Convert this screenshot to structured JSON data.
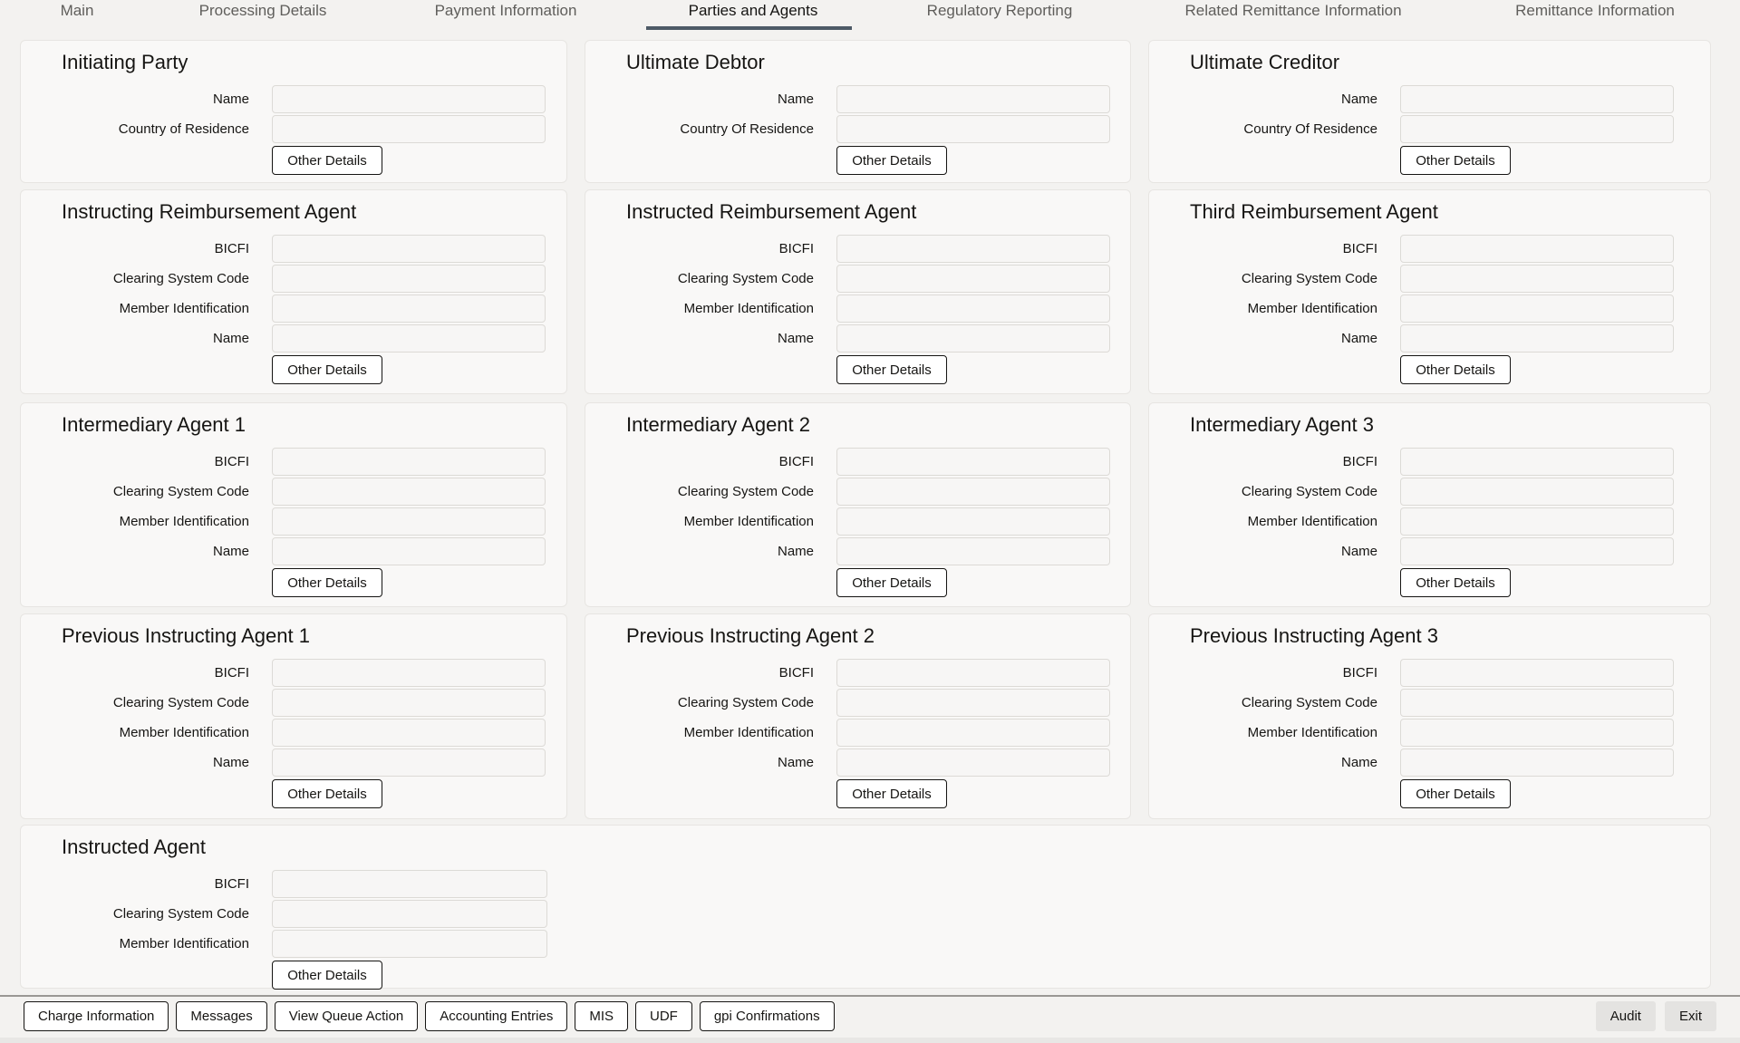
{
  "tabs": [
    {
      "label": "Main"
    },
    {
      "label": "Processing Details"
    },
    {
      "label": "Payment Information"
    },
    {
      "label": "Parties and Agents",
      "active": true
    },
    {
      "label": "Regulatory Reporting"
    },
    {
      "label": "Related Remittance Information"
    },
    {
      "label": "Remittance Information"
    }
  ],
  "panels": [
    {
      "title": "Initiating Party",
      "fields": [
        {
          "label": "Name",
          "value": ""
        },
        {
          "label": "Country of Residence",
          "value": ""
        }
      ],
      "button": "Other Details"
    },
    {
      "title": "Ultimate Debtor",
      "fields": [
        {
          "label": "Name",
          "value": ""
        },
        {
          "label": "Country Of Residence",
          "value": ""
        }
      ],
      "button": "Other Details"
    },
    {
      "title": "Ultimate Creditor",
      "fields": [
        {
          "label": "Name",
          "value": ""
        },
        {
          "label": "Country Of Residence",
          "value": ""
        }
      ],
      "button": "Other Details"
    },
    {
      "title": "Instructing Reimbursement Agent",
      "fields": [
        {
          "label": "BICFI",
          "value": ""
        },
        {
          "label": "Clearing System Code",
          "value": ""
        },
        {
          "label": "Member Identification",
          "value": ""
        },
        {
          "label": "Name",
          "value": ""
        }
      ],
      "button": "Other Details"
    },
    {
      "title": "Instructed Reimbursement Agent",
      "fields": [
        {
          "label": "BICFI",
          "value": ""
        },
        {
          "label": "Clearing System Code",
          "value": ""
        },
        {
          "label": "Member Identification",
          "value": ""
        },
        {
          "label": "Name",
          "value": ""
        }
      ],
      "button": "Other Details"
    },
    {
      "title": "Third Reimbursement Agent",
      "fields": [
        {
          "label": "BICFI",
          "value": ""
        },
        {
          "label": "Clearing System Code",
          "value": ""
        },
        {
          "label": "Member Identification",
          "value": ""
        },
        {
          "label": "Name",
          "value": ""
        }
      ],
      "button": "Other Details"
    },
    {
      "title": "Intermediary Agent 1",
      "fields": [
        {
          "label": "BICFI",
          "value": ""
        },
        {
          "label": "Clearing System Code",
          "value": ""
        },
        {
          "label": "Member Identification",
          "value": ""
        },
        {
          "label": "Name",
          "value": ""
        }
      ],
      "button": "Other Details"
    },
    {
      "title": "Intermediary Agent 2",
      "fields": [
        {
          "label": "BICFI",
          "value": ""
        },
        {
          "label": "Clearing System Code",
          "value": ""
        },
        {
          "label": "Member Identification",
          "value": ""
        },
        {
          "label": "Name",
          "value": ""
        }
      ],
      "button": "Other Details"
    },
    {
      "title": "Intermediary Agent 3",
      "fields": [
        {
          "label": "BICFI",
          "value": ""
        },
        {
          "label": "Clearing System Code",
          "value": ""
        },
        {
          "label": "Member Identification",
          "value": ""
        },
        {
          "label": "Name",
          "value": ""
        }
      ],
      "button": "Other Details"
    },
    {
      "title": "Previous Instructing Agent 1",
      "fields": [
        {
          "label": "BICFI",
          "value": ""
        },
        {
          "label": "Clearing System Code",
          "value": ""
        },
        {
          "label": "Member Identification",
          "value": ""
        },
        {
          "label": "Name",
          "value": ""
        }
      ],
      "button": "Other Details"
    },
    {
      "title": "Previous Instructing Agent 2",
      "fields": [
        {
          "label": "BICFI",
          "value": ""
        },
        {
          "label": "Clearing System Code",
          "value": ""
        },
        {
          "label": "Member Identification",
          "value": ""
        },
        {
          "label": "Name",
          "value": ""
        }
      ],
      "button": "Other Details"
    },
    {
      "title": "Previous Instructing Agent 3",
      "fields": [
        {
          "label": "BICFI",
          "value": ""
        },
        {
          "label": "Clearing System Code",
          "value": ""
        },
        {
          "label": "Member Identification",
          "value": ""
        },
        {
          "label": "Name",
          "value": ""
        }
      ],
      "button": "Other Details"
    },
    {
      "title": "Instructed Agent",
      "fields": [
        {
          "label": "BICFI",
          "value": ""
        },
        {
          "label": "Clearing System Code",
          "value": ""
        },
        {
          "label": "Member Identification",
          "value": ""
        }
      ],
      "button": "Other Details"
    }
  ],
  "footer": {
    "left_buttons": [
      "Charge Information",
      "Messages",
      "View Queue Action",
      "Accounting Entries",
      "MIS",
      "UDF",
      "gpi Confirmations"
    ],
    "right_buttons": [
      "Audit",
      "Exit"
    ]
  },
  "colors": {
    "active_tab_underline": "#4d5a66",
    "page_background": "#f3f2f0"
  }
}
